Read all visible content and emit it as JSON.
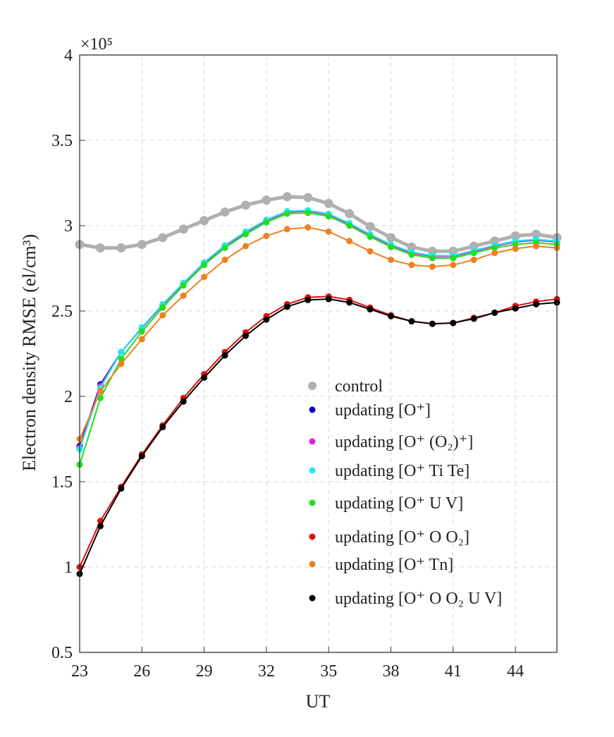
{
  "chart_data": {
    "type": "line",
    "title": "",
    "xlabel": "UT",
    "ylabel": "Electron density RMSE (el/cm³)",
    "y_exponent_label": "×10⁵",
    "xlim": [
      23,
      46
    ],
    "ylim": [
      0.5,
      4
    ],
    "y_scale_factor": 100000,
    "xticks": [
      23,
      26,
      29,
      32,
      35,
      38,
      41,
      44
    ],
    "yticks": [
      0.5,
      1,
      1.5,
      2,
      2.5,
      3,
      3.5,
      4
    ],
    "ytick_labels": [
      "0.5",
      "1",
      "1.5",
      "2",
      "2.5",
      "3",
      "3.5",
      "4"
    ],
    "grid": true,
    "legend_position": "lower-right",
    "x": [
      23,
      24,
      25,
      26,
      27,
      28,
      29,
      30,
      31,
      32,
      33,
      34,
      35,
      36,
      37,
      38,
      39,
      40,
      41,
      42,
      43,
      44,
      45,
      46
    ],
    "series": [
      {
        "name": "control",
        "color": "#b0b0b0",
        "values": [
          2.89,
          2.87,
          2.87,
          2.89,
          2.93,
          2.98,
          3.03,
          3.08,
          3.12,
          3.15,
          3.17,
          3.165,
          3.13,
          3.07,
          2.995,
          2.93,
          2.875,
          2.85,
          2.85,
          2.88,
          2.91,
          2.94,
          2.95,
          2.93
        ]
      },
      {
        "name": "updating [O⁺]",
        "color": "#0000d0",
        "values": [
          1.71,
          2.07,
          2.26,
          2.4,
          2.535,
          2.66,
          2.78,
          2.88,
          2.96,
          3.03,
          3.08,
          3.085,
          3.065,
          3.01,
          2.945,
          2.885,
          2.84,
          2.82,
          2.82,
          2.85,
          2.88,
          2.905,
          2.915,
          2.905
        ]
      },
      {
        "name": "updating [O⁺ (O₂)⁺]",
        "color": "#e020e0",
        "values": [
          1.7,
          2.06,
          2.26,
          2.4,
          2.535,
          2.66,
          2.78,
          2.88,
          2.96,
          3.03,
          3.08,
          3.085,
          3.065,
          3.01,
          2.945,
          2.885,
          2.84,
          2.82,
          2.82,
          2.85,
          2.88,
          2.905,
          2.915,
          2.905
        ]
      },
      {
        "name": "updating [O⁺ Ti Te]",
        "color": "#20e8f0",
        "values": [
          1.69,
          2.05,
          2.26,
          2.405,
          2.54,
          2.665,
          2.785,
          2.885,
          2.965,
          3.035,
          3.085,
          3.09,
          3.07,
          3.015,
          2.95,
          2.89,
          2.845,
          2.825,
          2.825,
          2.855,
          2.885,
          2.91,
          2.92,
          2.91
        ]
      },
      {
        "name": "updating [O⁺ U V]",
        "color": "#20e020",
        "values": [
          1.6,
          1.99,
          2.22,
          2.38,
          2.52,
          2.65,
          2.77,
          2.87,
          2.95,
          3.02,
          3.07,
          3.075,
          3.055,
          3.0,
          2.935,
          2.875,
          2.83,
          2.81,
          2.81,
          2.84,
          2.87,
          2.89,
          2.9,
          2.89
        ]
      },
      {
        "name": "updating [O⁺ O O₂]",
        "color": "#e01010",
        "values": [
          1.0,
          1.27,
          1.47,
          1.66,
          1.83,
          1.99,
          2.13,
          2.26,
          2.375,
          2.47,
          2.54,
          2.58,
          2.585,
          2.565,
          2.52,
          2.475,
          2.44,
          2.425,
          2.43,
          2.46,
          2.49,
          2.53,
          2.555,
          2.57
        ]
      },
      {
        "name": "updating [O⁺ Tn]",
        "color": "#f08020",
        "values": [
          1.75,
          2.03,
          2.19,
          2.335,
          2.475,
          2.59,
          2.7,
          2.8,
          2.88,
          2.94,
          2.98,
          2.99,
          2.965,
          2.91,
          2.85,
          2.8,
          2.77,
          2.76,
          2.77,
          2.8,
          2.84,
          2.865,
          2.88,
          2.87
        ]
      },
      {
        "name": "updating [O⁺ O O₂ U V]",
        "color": "#000000",
        "values": [
          0.96,
          1.24,
          1.46,
          1.65,
          1.82,
          1.97,
          2.11,
          2.24,
          2.355,
          2.45,
          2.525,
          2.565,
          2.57,
          2.55,
          2.51,
          2.47,
          2.44,
          2.425,
          2.43,
          2.455,
          2.49,
          2.515,
          2.54,
          2.55
        ]
      }
    ]
  }
}
